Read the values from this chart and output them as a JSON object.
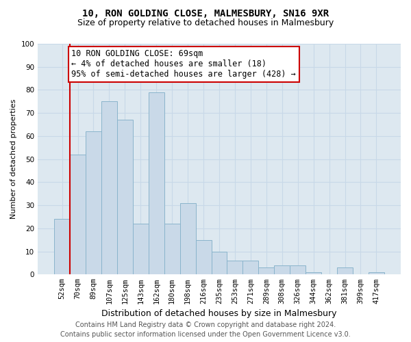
{
  "title": "10, RON GOLDING CLOSE, MALMESBURY, SN16 9XR",
  "subtitle": "Size of property relative to detached houses in Malmesbury",
  "xlabel": "Distribution of detached houses by size in Malmesbury",
  "ylabel": "Number of detached properties",
  "categories": [
    "52sqm",
    "70sqm",
    "89sqm",
    "107sqm",
    "125sqm",
    "143sqm",
    "162sqm",
    "180sqm",
    "198sqm",
    "216sqm",
    "235sqm",
    "253sqm",
    "271sqm",
    "289sqm",
    "308sqm",
    "326sqm",
    "344sqm",
    "362sqm",
    "381sqm",
    "399sqm",
    "417sqm"
  ],
  "values": [
    24,
    52,
    62,
    75,
    67,
    22,
    79,
    22,
    31,
    15,
    10,
    6,
    6,
    3,
    4,
    4,
    1,
    0,
    3,
    0,
    1
  ],
  "bar_color": "#c9d9e8",
  "bar_edge_color": "#8ab4cc",
  "highlight_line_color": "#cc0000",
  "annotation_text": "10 RON GOLDING CLOSE: 69sqm\n← 4% of detached houses are smaller (18)\n95% of semi-detached houses are larger (428) →",
  "annotation_box_edge_color": "#cc0000",
  "ylim": [
    0,
    100
  ],
  "yticks": [
    0,
    10,
    20,
    30,
    40,
    50,
    60,
    70,
    80,
    90,
    100
  ],
  "grid_color": "#c8d8e8",
  "background_color": "#dde8f0",
  "footer_line1": "Contains HM Land Registry data © Crown copyright and database right 2024.",
  "footer_line2": "Contains public sector information licensed under the Open Government Licence v3.0.",
  "title_fontsize": 10,
  "subtitle_fontsize": 9,
  "xlabel_fontsize": 9,
  "ylabel_fontsize": 8,
  "tick_fontsize": 7.5,
  "annotation_fontsize": 8.5,
  "footer_fontsize": 7
}
